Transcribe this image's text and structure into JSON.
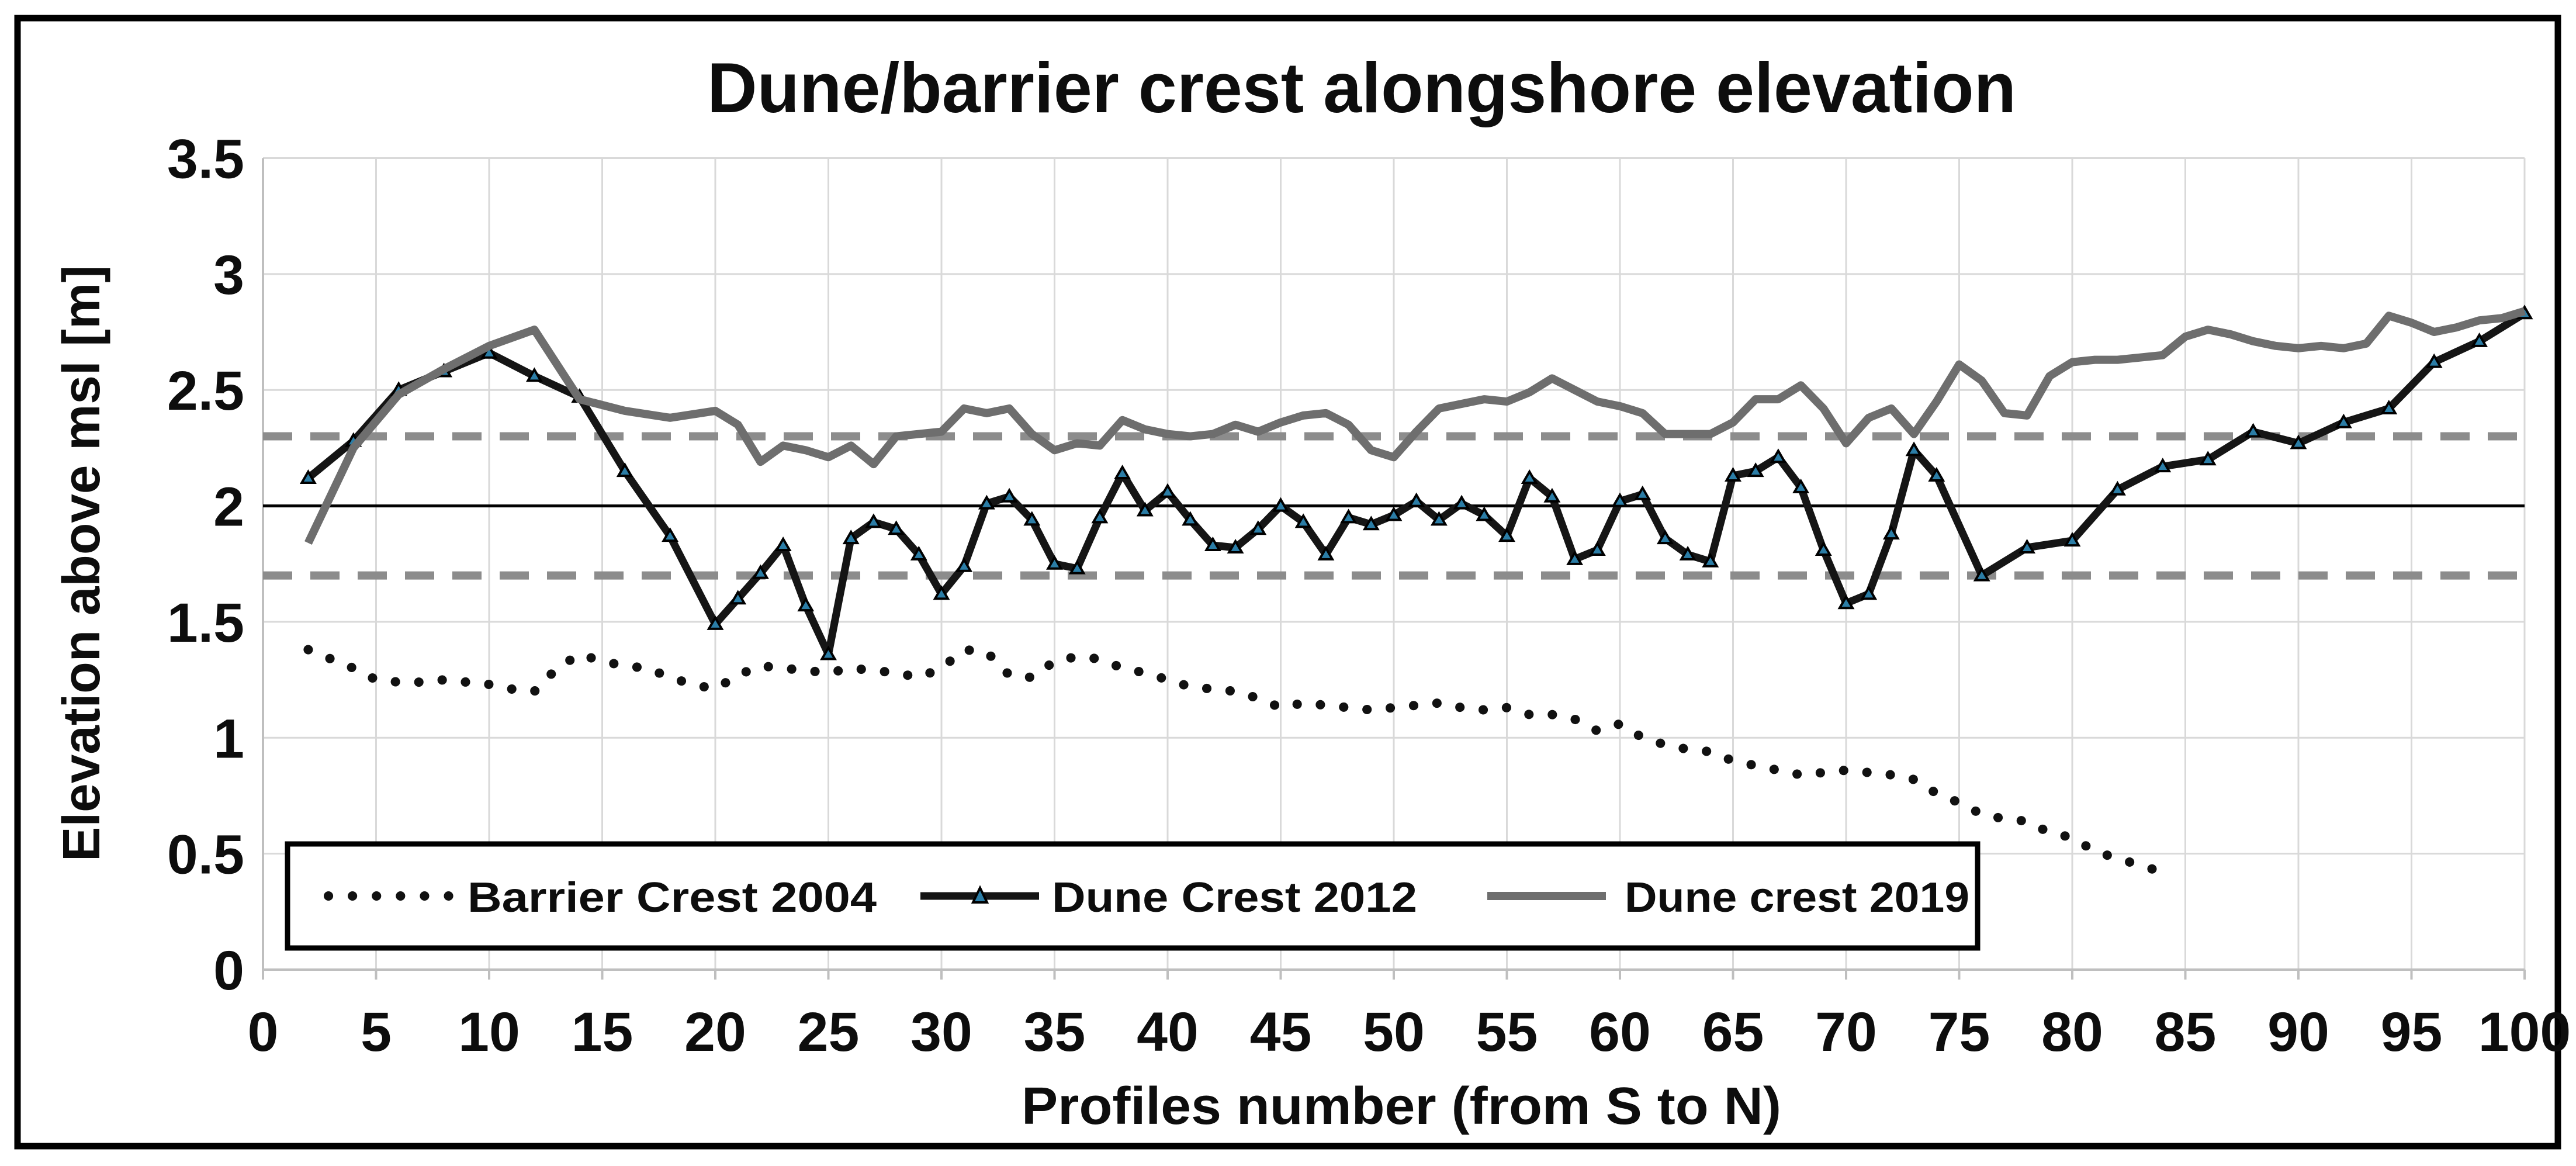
{
  "title": "Dune/barrier crest alongshore elevation",
  "axes": {
    "x": {
      "label": "Profiles number (from S to N)",
      "ticks": [
        "0",
        "5",
        "10",
        "15",
        "20",
        "25",
        "30",
        "35",
        "40",
        "45",
        "50",
        "55",
        "60",
        "65",
        "70",
        "75",
        "80",
        "85",
        "90",
        "95",
        "100"
      ],
      "range": [
        0,
        100
      ]
    },
    "y": {
      "label": "Elevation above msl [m]",
      "ticks": [
        "3.5",
        "3",
        "2.5",
        "2",
        "1.5",
        "1",
        "0.5",
        "0"
      ],
      "range": [
        0,
        3.5
      ]
    }
  },
  "reference_lines": {
    "mean": 2.0,
    "upper_dashed": 2.3,
    "lower_dashed": 1.7
  },
  "legend": [
    {
      "label": "Barrier Crest  2004",
      "style": "dotted-black"
    },
    {
      "label": "Dune Crest  2012",
      "style": "solid-black-triangle-markers"
    },
    {
      "label": "Dune crest 2019",
      "style": "solid-gray"
    }
  ],
  "colors": {
    "series_2004": "#111111",
    "series_2012": "#151515",
    "marker_2012_fill": "#2b7da6",
    "series_2019": "#6e6e6e",
    "dashed_reference": "#8c8c8c",
    "mean_line": "#000000",
    "gridline": "#d9d9d9",
    "axis_line": "#bfbfbf",
    "outer_border": "#000000"
  },
  "chart_data": {
    "type": "line",
    "title": "Dune/barrier crest alongshore elevation",
    "xlabel": "Profiles number (from S to N)",
    "ylabel": "Elevation above msl [m]",
    "xlim": [
      0,
      100
    ],
    "ylim": [
      0,
      3.5
    ],
    "grid": true,
    "legend_position": "inside-bottom-left",
    "series": [
      {
        "name": "Barrier Crest  2004",
        "points": [
          [
            2,
            1.38
          ],
          [
            3,
            1.34
          ],
          [
            4,
            1.3
          ],
          [
            5,
            1.25
          ],
          [
            6,
            1.24
          ],
          [
            7,
            1.24
          ],
          [
            8,
            1.25
          ],
          [
            9,
            1.24
          ],
          [
            10,
            1.23
          ],
          [
            11,
            1.21
          ],
          [
            12,
            1.2
          ],
          [
            13,
            1.3
          ],
          [
            14,
            1.36
          ],
          [
            15,
            1.33
          ],
          [
            16,
            1.31
          ],
          [
            17,
            1.3
          ],
          [
            18,
            1.26
          ],
          [
            19,
            1.23
          ],
          [
            20,
            1.21
          ],
          [
            21,
            1.27
          ],
          [
            22,
            1.31
          ],
          [
            23,
            1.3
          ],
          [
            24,
            1.29
          ],
          [
            25,
            1.28
          ],
          [
            26,
            1.3
          ],
          [
            27,
            1.29
          ],
          [
            28,
            1.28
          ],
          [
            29,
            1.26
          ],
          [
            30,
            1.3
          ],
          [
            31,
            1.38
          ],
          [
            32,
            1.37
          ],
          [
            33,
            1.27
          ],
          [
            34,
            1.26
          ],
          [
            35,
            1.33
          ],
          [
            36,
            1.35
          ],
          [
            37,
            1.34
          ],
          [
            38,
            1.3
          ],
          [
            39,
            1.28
          ],
          [
            40,
            1.25
          ],
          [
            41,
            1.22
          ],
          [
            42,
            1.21
          ],
          [
            43,
            1.2
          ],
          [
            44,
            1.17
          ],
          [
            45,
            1.13
          ],
          [
            46,
            1.15
          ],
          [
            47,
            1.14
          ],
          [
            48,
            1.13
          ],
          [
            49,
            1.12
          ],
          [
            50,
            1.13
          ],
          [
            51,
            1.14
          ],
          [
            52,
            1.15
          ],
          [
            53,
            1.13
          ],
          [
            54,
            1.12
          ],
          [
            55,
            1.13
          ],
          [
            56,
            1.1
          ],
          [
            57,
            1.1
          ],
          [
            58,
            1.08
          ],
          [
            59,
            1.03
          ],
          [
            60,
            1.06
          ],
          [
            61,
            1.0
          ],
          [
            62,
            0.97
          ],
          [
            63,
            0.95
          ],
          [
            64,
            0.94
          ],
          [
            65,
            0.9
          ],
          [
            66,
            0.88
          ],
          [
            67,
            0.86
          ],
          [
            68,
            0.84
          ],
          [
            69,
            0.85
          ],
          [
            70,
            0.86
          ],
          [
            71,
            0.85
          ],
          [
            72,
            0.84
          ],
          [
            73,
            0.82
          ],
          [
            74,
            0.76
          ],
          [
            75,
            0.72
          ],
          [
            76,
            0.67
          ],
          [
            77,
            0.65
          ],
          [
            78,
            0.64
          ],
          [
            79,
            0.59
          ],
          [
            80,
            0.57
          ],
          [
            81,
            0.51
          ],
          [
            82,
            0.48
          ],
          [
            83,
            0.45
          ],
          [
            84,
            0.42
          ]
        ]
      },
      {
        "name": "Dune Crest  2012",
        "points": [
          [
            2,
            2.12
          ],
          [
            4,
            2.28
          ],
          [
            6,
            2.5
          ],
          [
            8,
            2.58
          ],
          [
            10,
            2.66
          ],
          [
            12,
            2.56
          ],
          [
            14,
            2.47
          ],
          [
            16,
            2.15
          ],
          [
            18,
            1.87
          ],
          [
            20,
            1.49
          ],
          [
            21,
            1.6
          ],
          [
            22,
            1.71
          ],
          [
            23,
            1.83
          ],
          [
            24,
            1.57
          ],
          [
            25,
            1.36
          ],
          [
            26,
            1.86
          ],
          [
            27,
            1.93
          ],
          [
            28,
            1.9
          ],
          [
            29,
            1.79
          ],
          [
            30,
            1.62
          ],
          [
            31,
            1.74
          ],
          [
            32,
            2.01
          ],
          [
            33,
            2.04
          ],
          [
            34,
            1.94
          ],
          [
            35,
            1.75
          ],
          [
            36,
            1.73
          ],
          [
            37,
            1.95
          ],
          [
            38,
            2.14
          ],
          [
            39,
            1.98
          ],
          [
            40,
            2.06
          ],
          [
            41,
            1.94
          ],
          [
            42,
            1.83
          ],
          [
            43,
            1.82
          ],
          [
            44,
            1.9
          ],
          [
            45,
            2.0
          ],
          [
            46,
            1.93
          ],
          [
            47,
            1.79
          ],
          [
            48,
            1.95
          ],
          [
            49,
            1.92
          ],
          [
            50,
            1.96
          ],
          [
            51,
            2.02
          ],
          [
            52,
            1.94
          ],
          [
            53,
            2.01
          ],
          [
            54,
            1.96
          ],
          [
            55,
            1.87
          ],
          [
            56,
            2.12
          ],
          [
            57,
            2.04
          ],
          [
            58,
            1.77
          ],
          [
            59,
            1.81
          ],
          [
            60,
            2.02
          ],
          [
            61,
            2.05
          ],
          [
            62,
            1.86
          ],
          [
            63,
            1.79
          ],
          [
            64,
            1.76
          ],
          [
            65,
            2.13
          ],
          [
            66,
            2.15
          ],
          [
            67,
            2.21
          ],
          [
            68,
            2.08
          ],
          [
            69,
            1.81
          ],
          [
            70,
            1.58
          ],
          [
            71,
            1.62
          ],
          [
            72,
            1.88
          ],
          [
            73,
            2.24
          ],
          [
            74,
            2.13
          ],
          [
            76,
            1.7
          ],
          [
            78,
            1.82
          ],
          [
            80,
            1.85
          ],
          [
            82,
            2.07
          ],
          [
            84,
            2.17
          ],
          [
            86,
            2.2
          ],
          [
            88,
            2.32
          ],
          [
            90,
            2.27
          ],
          [
            92,
            2.36
          ],
          [
            94,
            2.42
          ],
          [
            96,
            2.62
          ],
          [
            98,
            2.71
          ],
          [
            100,
            2.83
          ]
        ]
      },
      {
        "name": "Dune crest 2019",
        "points": [
          [
            2,
            1.84
          ],
          [
            4,
            2.25
          ],
          [
            6,
            2.48
          ],
          [
            8,
            2.59
          ],
          [
            10,
            2.69
          ],
          [
            12,
            2.76
          ],
          [
            14,
            2.46
          ],
          [
            16,
            2.41
          ],
          [
            18,
            2.38
          ],
          [
            20,
            2.41
          ],
          [
            21,
            2.35
          ],
          [
            22,
            2.19
          ],
          [
            23,
            2.26
          ],
          [
            24,
            2.24
          ],
          [
            25,
            2.21
          ],
          [
            26,
            2.26
          ],
          [
            27,
            2.18
          ],
          [
            28,
            2.3
          ],
          [
            29,
            2.31
          ],
          [
            30,
            2.32
          ],
          [
            31,
            2.42
          ],
          [
            32,
            2.4
          ],
          [
            33,
            2.42
          ],
          [
            34,
            2.31
          ],
          [
            35,
            2.24
          ],
          [
            36,
            2.27
          ],
          [
            37,
            2.26
          ],
          [
            38,
            2.37
          ],
          [
            39,
            2.33
          ],
          [
            40,
            2.31
          ],
          [
            41,
            2.3
          ],
          [
            42,
            2.31
          ],
          [
            43,
            2.35
          ],
          [
            44,
            2.32
          ],
          [
            45,
            2.36
          ],
          [
            46,
            2.39
          ],
          [
            47,
            2.4
          ],
          [
            48,
            2.35
          ],
          [
            49,
            2.24
          ],
          [
            50,
            2.21
          ],
          [
            51,
            2.32
          ],
          [
            52,
            2.42
          ],
          [
            53,
            2.44
          ],
          [
            54,
            2.46
          ],
          [
            55,
            2.45
          ],
          [
            56,
            2.49
          ],
          [
            57,
            2.55
          ],
          [
            58,
            2.5
          ],
          [
            59,
            2.45
          ],
          [
            60,
            2.43
          ],
          [
            61,
            2.4
          ],
          [
            62,
            2.31
          ],
          [
            63,
            2.31
          ],
          [
            64,
            2.31
          ],
          [
            65,
            2.36
          ],
          [
            66,
            2.46
          ],
          [
            67,
            2.46
          ],
          [
            68,
            2.52
          ],
          [
            69,
            2.42
          ],
          [
            70,
            2.27
          ],
          [
            71,
            2.38
          ],
          [
            72,
            2.42
          ],
          [
            73,
            2.31
          ],
          [
            74,
            2.45
          ],
          [
            75,
            2.61
          ],
          [
            76,
            2.54
          ],
          [
            77,
            2.4
          ],
          [
            78,
            2.39
          ],
          [
            79,
            2.56
          ],
          [
            80,
            2.62
          ],
          [
            81,
            2.63
          ],
          [
            82,
            2.63
          ],
          [
            83,
            2.64
          ],
          [
            84,
            2.65
          ],
          [
            85,
            2.73
          ],
          [
            86,
            2.76
          ],
          [
            87,
            2.74
          ],
          [
            88,
            2.71
          ],
          [
            89,
            2.69
          ],
          [
            90,
            2.68
          ],
          [
            91,
            2.69
          ],
          [
            92,
            2.68
          ],
          [
            93,
            2.7
          ],
          [
            94,
            2.82
          ],
          [
            95,
            2.79
          ],
          [
            96,
            2.75
          ],
          [
            97,
            2.77
          ],
          [
            98,
            2.8
          ],
          [
            99,
            2.81
          ],
          [
            100,
            2.84
          ]
        ]
      }
    ]
  }
}
